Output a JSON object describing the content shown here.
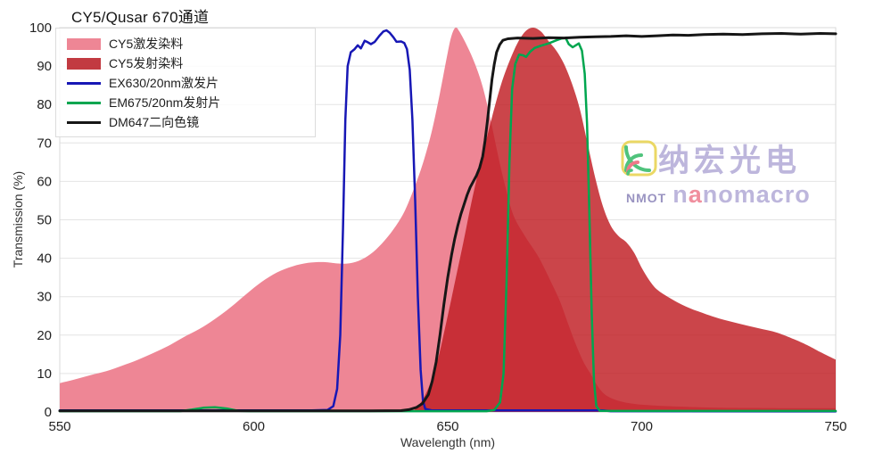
{
  "title": "CY5/Qusar 670通道",
  "axes": {
    "x": {
      "label": "Wavelength (nm)",
      "ticks": [
        550,
        600,
        650,
        700,
        750
      ]
    },
    "y": {
      "label": "Transmission (%)",
      "ticks": [
        0,
        10,
        20,
        30,
        40,
        50,
        60,
        70,
        80,
        90,
        100
      ]
    }
  },
  "legend": {
    "items": [
      {
        "id": "cy5-excitation-dye",
        "label": "CY5激发染料",
        "type": "fill",
        "color": "#ee8695"
      },
      {
        "id": "cy5-emission-dye",
        "label": "CY5发射染料",
        "type": "fill",
        "color": "#c23a41"
      },
      {
        "id": "ex-filter",
        "label": "EX630/20nm激发片",
        "type": "line",
        "color": "#1717b5"
      },
      {
        "id": "em-filter",
        "label": "EM675/20nm发射片",
        "type": "line",
        "color": "#00a64f"
      },
      {
        "id": "dichroic",
        "label": "DM647二向色镜",
        "type": "line",
        "color": "#161616"
      }
    ]
  },
  "watermark": {
    "icon": "signal-arcs-logo-icon",
    "cn_text": "纳宏光电",
    "nmot": "NMOT",
    "brand_prefix": "n",
    "brand_accent": "a",
    "brand_suffix": "nomacro",
    "colors": {
      "lavender": "#b6afd9",
      "nmot_purple": "#8f88bb",
      "accent_pink": "#ef8394",
      "icon_yellow": "#e9d455",
      "icon_green": "#3dbd6e",
      "icon_red": "#ee6b7e"
    }
  },
  "style_colors": {
    "grid": "#e4e4e4",
    "border": "#d9d9d9",
    "axis_zero": "#c9c9c9",
    "tick_text": "#222222"
  },
  "chart_data": {
    "type": "area",
    "title": "CY5/Qusar 670通道",
    "xlabel": "Wavelength (nm)",
    "ylabel": "Transmission (%)",
    "xlim": [
      550,
      750
    ],
    "ylim": [
      0,
      100
    ],
    "grid": true,
    "legend_position": "top-left",
    "series": [
      {
        "name": "CY5激发染料",
        "type": "area",
        "color": "#ee8695",
        "fill_opacity": 1,
        "smooth": true,
        "points": [
          [
            550,
            7.5
          ],
          [
            554,
            8.5
          ],
          [
            558,
            9.6
          ],
          [
            562,
            10.6
          ],
          [
            566,
            12
          ],
          [
            570,
            13.5
          ],
          [
            574,
            15.3
          ],
          [
            578,
            17.2
          ],
          [
            582,
            19.5
          ],
          [
            586,
            21.6
          ],
          [
            590,
            24.2
          ],
          [
            594,
            27.2
          ],
          [
            598,
            30.6
          ],
          [
            602,
            33.8
          ],
          [
            606,
            36.3
          ],
          [
            610,
            37.9
          ],
          [
            614,
            38.8
          ],
          [
            618,
            39
          ],
          [
            621,
            38.7
          ],
          [
            624,
            38.6
          ],
          [
            627,
            39.3
          ],
          [
            630,
            41
          ],
          [
            633,
            43.8
          ],
          [
            636,
            47.5
          ],
          [
            639,
            52.5
          ],
          [
            642,
            60
          ],
          [
            644,
            66
          ],
          [
            646,
            73.5
          ],
          [
            648,
            83
          ],
          [
            650,
            93.5
          ],
          [
            651,
            98
          ],
          [
            652,
            100
          ],
          [
            653,
            99
          ],
          [
            655,
            95.2
          ],
          [
            657,
            90.6
          ],
          [
            659,
            84.6
          ],
          [
            661,
            76.2
          ],
          [
            663,
            66.6
          ],
          [
            665,
            58
          ],
          [
            667,
            51
          ],
          [
            670,
            45.6
          ],
          [
            673,
            41
          ],
          [
            675,
            37.2
          ],
          [
            677,
            33
          ],
          [
            679,
            28.6
          ],
          [
            681,
            23
          ],
          [
            683,
            17.6
          ],
          [
            685,
            13
          ],
          [
            687,
            9.6
          ],
          [
            689,
            6.2
          ],
          [
            691,
            4.2
          ],
          [
            694,
            2.9
          ],
          [
            698,
            2.1
          ],
          [
            703,
            1.7
          ],
          [
            710,
            1.4
          ],
          [
            720,
            1.1
          ],
          [
            735,
            1
          ],
          [
            750,
            1
          ]
        ]
      },
      {
        "name": "CY5发射染料",
        "type": "area",
        "color": "#bf1c22",
        "fill_opacity": 0.82,
        "smooth": true,
        "points": [
          [
            641,
            0
          ],
          [
            644,
            4
          ],
          [
            647,
            12
          ],
          [
            650,
            25
          ],
          [
            652,
            34.5
          ],
          [
            654,
            44
          ],
          [
            656,
            54
          ],
          [
            658,
            63
          ],
          [
            660,
            71
          ],
          [
            662,
            79
          ],
          [
            664,
            86
          ],
          [
            666,
            91.5
          ],
          [
            668,
            96
          ],
          [
            670,
            99
          ],
          [
            672,
            100
          ],
          [
            674,
            99
          ],
          [
            676,
            96.5
          ],
          [
            678,
            94
          ],
          [
            680,
            90.5
          ],
          [
            682,
            85.5
          ],
          [
            684,
            79
          ],
          [
            686,
            70
          ],
          [
            688,
            61
          ],
          [
            690,
            53.5
          ],
          [
            692,
            48.5
          ],
          [
            694,
            45.8
          ],
          [
            696,
            44.2
          ],
          [
            698,
            41.5
          ],
          [
            700,
            37.5
          ],
          [
            702,
            34.2
          ],
          [
            704,
            31.8
          ],
          [
            707,
            29.8
          ],
          [
            711,
            27.6
          ],
          [
            715,
            26
          ],
          [
            720,
            24.3
          ],
          [
            725,
            23
          ],
          [
            730,
            21.8
          ],
          [
            735,
            20.6
          ],
          [
            740,
            18.6
          ],
          [
            743,
            17.2
          ],
          [
            746,
            15.6
          ],
          [
            750,
            13.6
          ]
        ]
      },
      {
        "name": "EX630/20nm激发片",
        "type": "line",
        "color": "#1717b5",
        "width": 2.5,
        "smooth": false,
        "points": [
          [
            550,
            0.4
          ],
          [
            615,
            0.4
          ],
          [
            619,
            0.5
          ],
          [
            620.5,
            1.5
          ],
          [
            621.5,
            6
          ],
          [
            622.3,
            20
          ],
          [
            623,
            48
          ],
          [
            623.6,
            76
          ],
          [
            624.2,
            90
          ],
          [
            625,
            93.6
          ],
          [
            626,
            94.4
          ],
          [
            626.8,
            95.4
          ],
          [
            627.6,
            94.6
          ],
          [
            628.6,
            96.6
          ],
          [
            629.4,
            96.2
          ],
          [
            630.2,
            95.7
          ],
          [
            631.2,
            96.3
          ],
          [
            632.4,
            97.9
          ],
          [
            633.4,
            99
          ],
          [
            634.2,
            99.3
          ],
          [
            635,
            98.7
          ],
          [
            636,
            97.5
          ],
          [
            636.8,
            96.3
          ],
          [
            638,
            96.4
          ],
          [
            638.8,
            96
          ],
          [
            639.5,
            94.4
          ],
          [
            640.2,
            89
          ],
          [
            640.9,
            76
          ],
          [
            641.6,
            55
          ],
          [
            642.3,
            30
          ],
          [
            643,
            11
          ],
          [
            643.6,
            3
          ],
          [
            644.2,
            0.8
          ],
          [
            646,
            0.4
          ],
          [
            690,
            0.4
          ],
          [
            692,
            0.2
          ],
          [
            750,
            0.15
          ]
        ]
      },
      {
        "name": "EM675/20nm发射片",
        "type": "line",
        "color": "#00a64f",
        "width": 2.5,
        "smooth": false,
        "points": [
          [
            550,
            0.2
          ],
          [
            581,
            0.2
          ],
          [
            584,
            0.6
          ],
          [
            587,
            1.1
          ],
          [
            590,
            1.2
          ],
          [
            593,
            0.9
          ],
          [
            596,
            0.3
          ],
          [
            599,
            0.2
          ],
          [
            660,
            0.2
          ],
          [
            662,
            0.5
          ],
          [
            663.5,
            2.5
          ],
          [
            664.4,
            10
          ],
          [
            665.2,
            35
          ],
          [
            665.9,
            65
          ],
          [
            666.6,
            84
          ],
          [
            667.4,
            90.5
          ],
          [
            668.4,
            93
          ],
          [
            669.4,
            92.8
          ],
          [
            670.2,
            92.4
          ],
          [
            671.2,
            93.7
          ],
          [
            672.4,
            94.7
          ],
          [
            674,
            95.3
          ],
          [
            676,
            95.9
          ],
          [
            678,
            96.7
          ],
          [
            679.4,
            97.2
          ],
          [
            680.4,
            97.3
          ],
          [
            681.2,
            95.7
          ],
          [
            682.2,
            94.9
          ],
          [
            683,
            95.4
          ],
          [
            683.8,
            95.9
          ],
          [
            684.6,
            94
          ],
          [
            685.3,
            88
          ],
          [
            685.9,
            75
          ],
          [
            686.5,
            52
          ],
          [
            687.1,
            26
          ],
          [
            687.7,
            8
          ],
          [
            688.3,
            1.5
          ],
          [
            689.2,
            0.3
          ],
          [
            700,
            0.25
          ],
          [
            750,
            0.25
          ]
        ]
      },
      {
        "name": "DM647二向色镜",
        "type": "line",
        "color": "#161616",
        "width": 3,
        "smooth": false,
        "points": [
          [
            550,
            0.3
          ],
          [
            600,
            0.3
          ],
          [
            630,
            0.3
          ],
          [
            638,
            0.35
          ],
          [
            640,
            0.6
          ],
          [
            642,
            1.2
          ],
          [
            643.5,
            2.2
          ],
          [
            645,
            4.5
          ],
          [
            646,
            8
          ],
          [
            647,
            13
          ],
          [
            648,
            20
          ],
          [
            649,
            28
          ],
          [
            650,
            35
          ],
          [
            651,
            41
          ],
          [
            651.8,
            45
          ],
          [
            652.6,
            48.5
          ],
          [
            653.4,
            51.5
          ],
          [
            654.2,
            54
          ],
          [
            655,
            56.5
          ],
          [
            655.8,
            58.5
          ],
          [
            656.6,
            60
          ],
          [
            657.4,
            61.5
          ],
          [
            658.2,
            63.5
          ],
          [
            659,
            66.5
          ],
          [
            659.6,
            70.5
          ],
          [
            660.2,
            75.5
          ],
          [
            660.8,
            81
          ],
          [
            661.4,
            86.5
          ],
          [
            662,
            90.5
          ],
          [
            662.6,
            93.6
          ],
          [
            663.4,
            95.6
          ],
          [
            664.2,
            96.7
          ],
          [
            665.5,
            97.1
          ],
          [
            668,
            97.3
          ],
          [
            672,
            97.2
          ],
          [
            676,
            97.4
          ],
          [
            680,
            97.3
          ],
          [
            684,
            97.5
          ],
          [
            688,
            97.6
          ],
          [
            692,
            97.7
          ],
          [
            696,
            97.9
          ],
          [
            700,
            97.7
          ],
          [
            704,
            97.9
          ],
          [
            708,
            98.1
          ],
          [
            712,
            98
          ],
          [
            716,
            98.2
          ],
          [
            721,
            98.3
          ],
          [
            726,
            98.2
          ],
          [
            731,
            98.4
          ],
          [
            736,
            98.5
          ],
          [
            741,
            98.3
          ],
          [
            746,
            98.5
          ],
          [
            750,
            98.4
          ]
        ]
      }
    ]
  }
}
